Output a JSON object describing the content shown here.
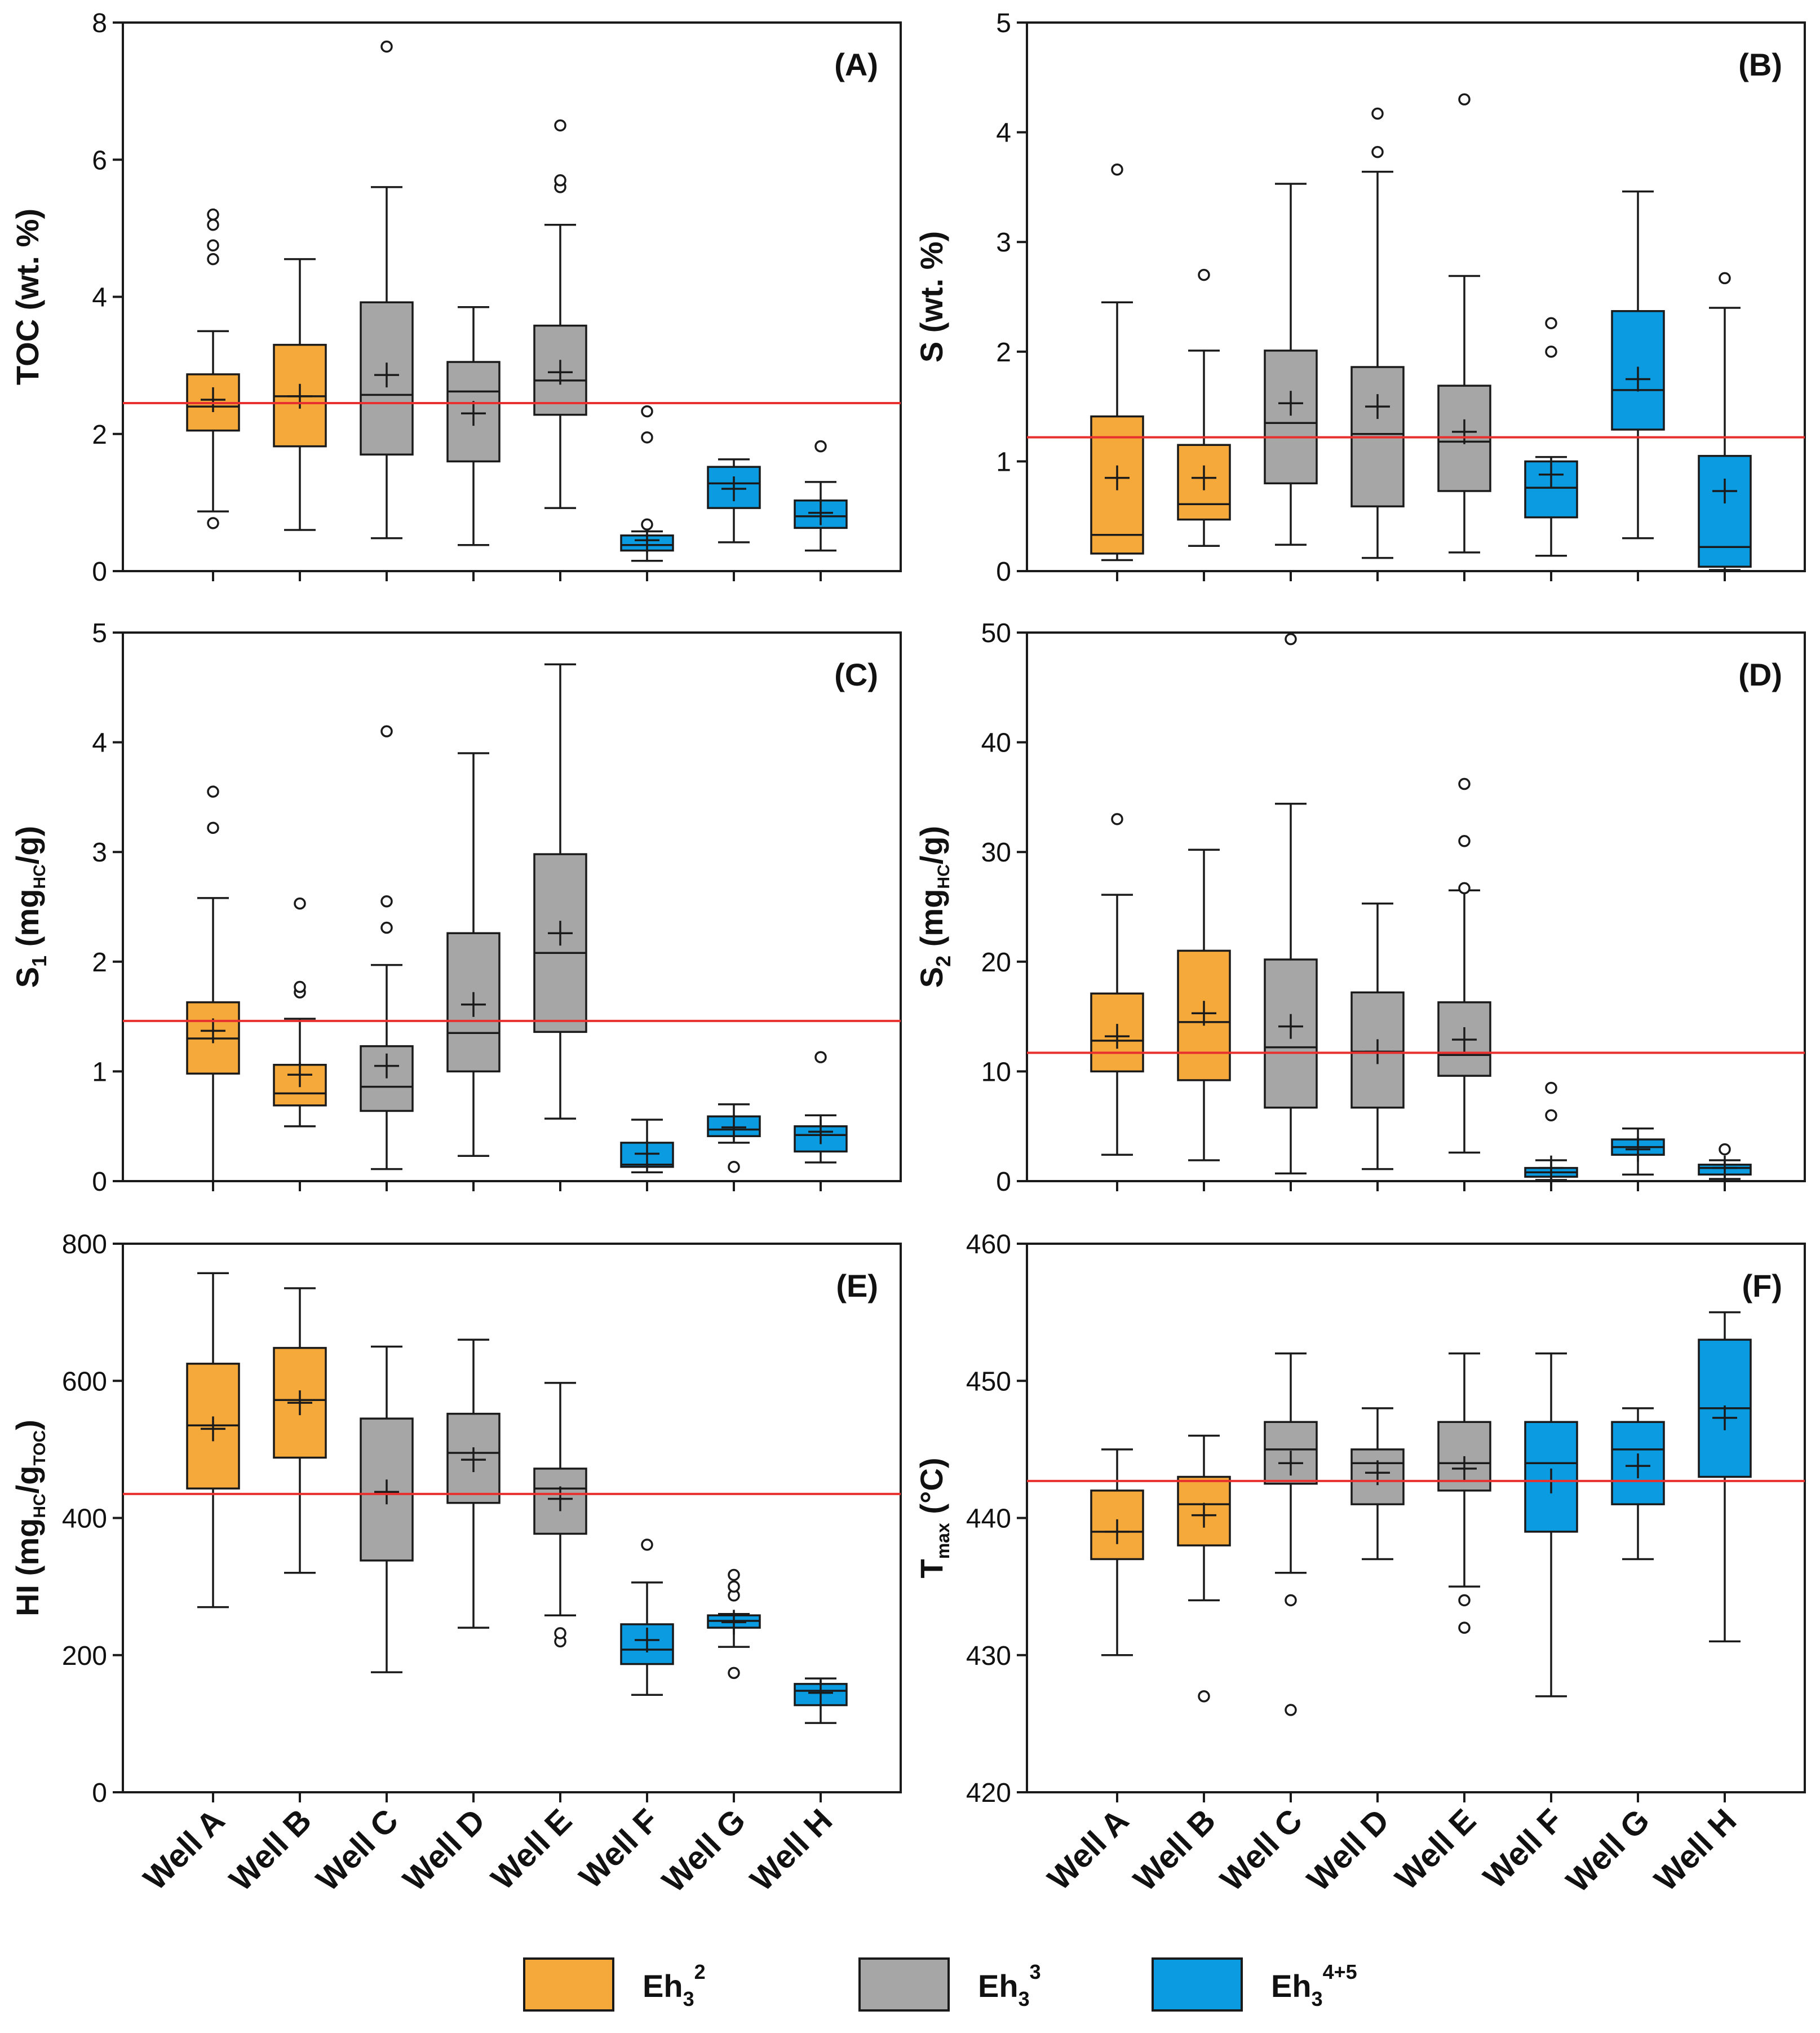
{
  "figure": {
    "categories": [
      "Well A",
      "Well B",
      "Well C",
      "Well D",
      "Well E",
      "Well F",
      "Well G",
      "Well H"
    ],
    "group_of_category": [
      "Eh3_2",
      "Eh3_2",
      "Eh3_3",
      "Eh3_3",
      "Eh3_3",
      "Eh3_45",
      "Eh3_45",
      "Eh3_45"
    ]
  },
  "colors": {
    "Eh3_2": "#F5A93A",
    "Eh3_3": "#A6A6A6",
    "Eh3_45": "#0A9BE0",
    "reference_line": "#E8312F",
    "stroke": "#1a1a1a"
  },
  "legend": {
    "items": [
      {
        "key": "Eh3_2",
        "base": "Eh",
        "sub": "3",
        "sup": "2"
      },
      {
        "key": "Eh3_3",
        "base": "Eh",
        "sub": "3",
        "sup": "3"
      },
      {
        "key": "Eh3_45",
        "base": "Eh",
        "sub": "3",
        "sup": "4+5"
      }
    ]
  },
  "chart_data": [
    {
      "panel": "(A)",
      "type": "box",
      "ylabel": "TOC (wt. %)",
      "ylim": [
        0,
        8
      ],
      "yticks": [
        0,
        2,
        4,
        6,
        8
      ],
      "reference_line": 2.45,
      "boxes": [
        {
          "category": "Well A",
          "whisker_low": 0.87,
          "q1": 2.05,
          "median": 2.4,
          "q3": 2.87,
          "whisker_high": 3.5,
          "mean": 2.5,
          "outliers": [
            0.7,
            4.55,
            4.75,
            5.05,
            5.2
          ]
        },
        {
          "category": "Well B",
          "whisker_low": 0.6,
          "q1": 1.82,
          "median": 2.55,
          "q3": 3.3,
          "whisker_high": 4.55,
          "mean": 2.55,
          "outliers": []
        },
        {
          "category": "Well C",
          "whisker_low": 0.48,
          "q1": 1.7,
          "median": 2.57,
          "q3": 3.92,
          "whisker_high": 5.6,
          "mean": 2.86,
          "outliers": [
            7.65
          ]
        },
        {
          "category": "Well D",
          "whisker_low": 0.38,
          "q1": 1.6,
          "median": 2.62,
          "q3": 3.05,
          "whisker_high": 3.85,
          "mean": 2.3,
          "outliers": []
        },
        {
          "category": "Well E",
          "whisker_low": 0.92,
          "q1": 2.28,
          "median": 2.78,
          "q3": 3.58,
          "whisker_high": 5.05,
          "mean": 2.9,
          "outliers": [
            5.6,
            5.7,
            6.5
          ]
        },
        {
          "category": "Well F",
          "whisker_low": 0.15,
          "q1": 0.3,
          "median": 0.38,
          "q3": 0.52,
          "whisker_high": 0.58,
          "mean": 0.45,
          "outliers": [
            0.68,
            1.95,
            2.33
          ]
        },
        {
          "category": "Well G",
          "whisker_low": 0.42,
          "q1": 0.92,
          "median": 1.28,
          "q3": 1.52,
          "whisker_high": 1.63,
          "mean": 1.2,
          "outliers": []
        },
        {
          "category": "Well H",
          "whisker_low": 0.3,
          "q1": 0.63,
          "median": 0.8,
          "q3": 1.03,
          "whisker_high": 1.3,
          "mean": 0.85,
          "outliers": [
            1.82
          ]
        }
      ]
    },
    {
      "panel": "(B)",
      "type": "box",
      "ylabel": "S (wt. %)",
      "ylim": [
        0,
        5
      ],
      "yticks": [
        0,
        1,
        2,
        3,
        4,
        5
      ],
      "reference_line": 1.22,
      "boxes": [
        {
          "category": "Well A",
          "whisker_low": 0.1,
          "q1": 0.16,
          "median": 0.33,
          "q3": 1.41,
          "whisker_high": 2.45,
          "mean": 0.85,
          "outliers": [
            3.66
          ]
        },
        {
          "category": "Well B",
          "whisker_low": 0.23,
          "q1": 0.47,
          "median": 0.61,
          "q3": 1.15,
          "whisker_high": 2.01,
          "mean": 0.85,
          "outliers": [
            2.7
          ]
        },
        {
          "category": "Well C",
          "whisker_low": 0.24,
          "q1": 0.8,
          "median": 1.35,
          "q3": 2.01,
          "whisker_high": 3.53,
          "mean": 1.53,
          "outliers": []
        },
        {
          "category": "Well D",
          "whisker_low": 0.12,
          "q1": 0.59,
          "median": 1.25,
          "q3": 1.86,
          "whisker_high": 3.64,
          "mean": 1.5,
          "outliers": [
            3.82,
            4.17
          ]
        },
        {
          "category": "Well E",
          "whisker_low": 0.17,
          "q1": 0.73,
          "median": 1.18,
          "q3": 1.69,
          "whisker_high": 2.69,
          "mean": 1.27,
          "outliers": [
            4.3
          ]
        },
        {
          "category": "Well F",
          "whisker_low": 0.14,
          "q1": 0.49,
          "median": 0.76,
          "q3": 1.0,
          "whisker_high": 1.04,
          "mean": 0.88,
          "outliers": [
            2.0,
            2.26
          ]
        },
        {
          "category": "Well G",
          "whisker_low": 0.3,
          "q1": 1.29,
          "median": 1.65,
          "q3": 2.37,
          "whisker_high": 3.46,
          "mean": 1.75,
          "outliers": []
        },
        {
          "category": "Well H",
          "whisker_low": 0.01,
          "q1": 0.04,
          "median": 0.22,
          "q3": 1.05,
          "whisker_high": 2.4,
          "mean": 0.73,
          "outliers": [
            2.67
          ]
        }
      ]
    },
    {
      "panel": "(C)",
      "type": "box",
      "ylabel": "S1 (mgHC/g)",
      "ylim": [
        0,
        5
      ],
      "yticks": [
        0,
        1,
        2,
        3,
        4,
        5
      ],
      "reference_line": 1.46,
      "boxes": [
        {
          "category": "Well A",
          "whisker_low": 0.0,
          "q1": 0.98,
          "median": 1.3,
          "q3": 1.63,
          "whisker_high": 2.58,
          "mean": 1.37,
          "outliers": [
            3.22,
            3.55
          ]
        },
        {
          "category": "Well B",
          "whisker_low": 0.5,
          "q1": 0.69,
          "median": 0.8,
          "q3": 1.06,
          "whisker_high": 1.48,
          "mean": 0.97,
          "outliers": [
            1.72,
            1.77,
            2.53
          ]
        },
        {
          "category": "Well C",
          "whisker_low": 0.11,
          "q1": 0.64,
          "median": 0.86,
          "q3": 1.23,
          "whisker_high": 1.97,
          "mean": 1.05,
          "outliers": [
            2.31,
            2.55,
            4.1
          ]
        },
        {
          "category": "Well D",
          "whisker_low": 0.23,
          "q1": 1.0,
          "median": 1.35,
          "q3": 2.26,
          "whisker_high": 3.9,
          "mean": 1.61,
          "outliers": []
        },
        {
          "category": "Well E",
          "whisker_low": 0.57,
          "q1": 1.36,
          "median": 2.08,
          "q3": 2.98,
          "whisker_high": 4.71,
          "mean": 2.26,
          "outliers": []
        },
        {
          "category": "Well F",
          "whisker_low": 0.08,
          "q1": 0.13,
          "median": 0.15,
          "q3": 0.35,
          "whisker_high": 0.56,
          "mean": 0.25,
          "outliers": []
        },
        {
          "category": "Well G",
          "whisker_low": 0.35,
          "q1": 0.41,
          "median": 0.47,
          "q3": 0.59,
          "whisker_high": 0.7,
          "mean": 0.49,
          "outliers": [
            0.13
          ]
        },
        {
          "category": "Well H",
          "whisker_low": 0.17,
          "q1": 0.27,
          "median": 0.42,
          "q3": 0.5,
          "whisker_high": 0.6,
          "mean": 0.45,
          "outliers": [
            1.13
          ]
        }
      ]
    },
    {
      "panel": "(D)",
      "type": "box",
      "ylabel": "S2 (mgHC/g)",
      "ylim": [
        0,
        50
      ],
      "yticks": [
        0,
        10,
        20,
        30,
        40,
        50
      ],
      "reference_line": 11.7,
      "boxes": [
        {
          "category": "Well A",
          "whisker_low": 2.4,
          "q1": 10.0,
          "median": 12.8,
          "q3": 17.1,
          "whisker_high": 26.1,
          "mean": 13.2,
          "outliers": [
            33.0
          ]
        },
        {
          "category": "Well B",
          "whisker_low": 1.9,
          "q1": 9.2,
          "median": 14.5,
          "q3": 21.0,
          "whisker_high": 30.2,
          "mean": 15.3,
          "outliers": []
        },
        {
          "category": "Well C",
          "whisker_low": 0.7,
          "q1": 6.7,
          "median": 12.2,
          "q3": 20.2,
          "whisker_high": 34.4,
          "mean": 14.1,
          "outliers": [
            49.4
          ]
        },
        {
          "category": "Well D",
          "whisker_low": 1.1,
          "q1": 6.7,
          "median": 11.8,
          "q3": 17.2,
          "whisker_high": 25.3,
          "mean": 11.8,
          "outliers": []
        },
        {
          "category": "Well E",
          "whisker_low": 2.6,
          "q1": 9.6,
          "median": 11.5,
          "q3": 16.3,
          "whisker_high": 26.5,
          "mean": 12.9,
          "outliers": [
            26.7,
            31.0,
            36.2
          ]
        },
        {
          "category": "Well F",
          "whisker_low": 0.1,
          "q1": 0.4,
          "median": 0.8,
          "q3": 1.2,
          "whisker_high": 1.9,
          "mean": 1.2,
          "outliers": [
            6.0,
            8.5
          ]
        },
        {
          "category": "Well G",
          "whisker_low": 0.6,
          "q1": 2.4,
          "median": 3.1,
          "q3": 3.8,
          "whisker_high": 4.8,
          "mean": 2.9,
          "outliers": []
        },
        {
          "category": "Well H",
          "whisker_low": 0.2,
          "q1": 0.6,
          "median": 1.2,
          "q3": 1.5,
          "whisker_high": 1.9,
          "mean": 1.2,
          "outliers": [
            2.9
          ]
        }
      ]
    },
    {
      "panel": "(E)",
      "type": "box",
      "ylabel": "HI (mgHC/gTOC)",
      "ylim": [
        0,
        800
      ],
      "yticks": [
        0,
        200,
        400,
        600,
        800
      ],
      "reference_line": 435,
      "boxes": [
        {
          "category": "Well A",
          "whisker_low": 270,
          "q1": 443,
          "median": 535,
          "q3": 625,
          "whisker_high": 757,
          "mean": 530,
          "outliers": []
        },
        {
          "category": "Well B",
          "whisker_low": 320,
          "q1": 488,
          "median": 572,
          "q3": 648,
          "whisker_high": 735,
          "mean": 568,
          "outliers": []
        },
        {
          "category": "Well C",
          "whisker_low": 175,
          "q1": 338,
          "median": 435,
          "q3": 545,
          "whisker_high": 650,
          "mean": 438,
          "outliers": []
        },
        {
          "category": "Well D",
          "whisker_low": 240,
          "q1": 422,
          "median": 495,
          "q3": 552,
          "whisker_high": 660,
          "mean": 485,
          "outliers": []
        },
        {
          "category": "Well E",
          "whisker_low": 258,
          "q1": 377,
          "median": 443,
          "q3": 472,
          "whisker_high": 597,
          "mean": 428,
          "outliers": [
            220,
            232
          ]
        },
        {
          "category": "Well F",
          "whisker_low": 142,
          "q1": 187,
          "median": 208,
          "q3": 245,
          "whisker_high": 306,
          "mean": 222,
          "outliers": [
            361
          ]
        },
        {
          "category": "Well G",
          "whisker_low": 212,
          "q1": 240,
          "median": 250,
          "q3": 258,
          "whisker_high": 260,
          "mean": 248,
          "outliers": [
            174,
            287,
            300,
            317
          ]
        },
        {
          "category": "Well H",
          "whisker_low": 101,
          "q1": 127,
          "median": 148,
          "q3": 158,
          "whisker_high": 166,
          "mean": 145,
          "outliers": []
        }
      ]
    },
    {
      "panel": "(F)",
      "type": "box",
      "ylabel": "Tmax (°C)",
      "ylim": [
        420,
        460
      ],
      "yticks": [
        420,
        430,
        440,
        450,
        460
      ],
      "reference_line": 442.7,
      "boxes": [
        {
          "category": "Well A",
          "whisker_low": 430,
          "q1": 437,
          "median": 439,
          "q3": 442,
          "whisker_high": 445,
          "mean": 439,
          "outliers": []
        },
        {
          "category": "Well B",
          "whisker_low": 434,
          "q1": 438,
          "median": 441,
          "q3": 443,
          "whisker_high": 446,
          "mean": 440.2,
          "outliers": [
            427
          ]
        },
        {
          "category": "Well C",
          "whisker_low": 436,
          "q1": 442.5,
          "median": 445,
          "q3": 447,
          "whisker_high": 452,
          "mean": 444,
          "outliers": [
            434,
            426
          ]
        },
        {
          "category": "Well D",
          "whisker_low": 437,
          "q1": 441,
          "median": 444,
          "q3": 445,
          "whisker_high": 448,
          "mean": 443.3,
          "outliers": []
        },
        {
          "category": "Well E",
          "whisker_low": 435,
          "q1": 442,
          "median": 444,
          "q3": 447,
          "whisker_high": 452,
          "mean": 443.6,
          "outliers": [
            434,
            432
          ]
        },
        {
          "category": "Well F",
          "whisker_low": 427,
          "q1": 439,
          "median": 444,
          "q3": 447,
          "whisker_high": 452,
          "mean": 442.7,
          "outliers": []
        },
        {
          "category": "Well G",
          "whisker_low": 437,
          "q1": 441,
          "median": 445,
          "q3": 447,
          "whisker_high": 448,
          "mean": 443.8,
          "outliers": []
        },
        {
          "category": "Well H",
          "whisker_low": 431,
          "q1": 443,
          "median": 448,
          "q3": 453,
          "whisker_high": 455,
          "mean": 447.3,
          "outliers": []
        }
      ]
    }
  ]
}
